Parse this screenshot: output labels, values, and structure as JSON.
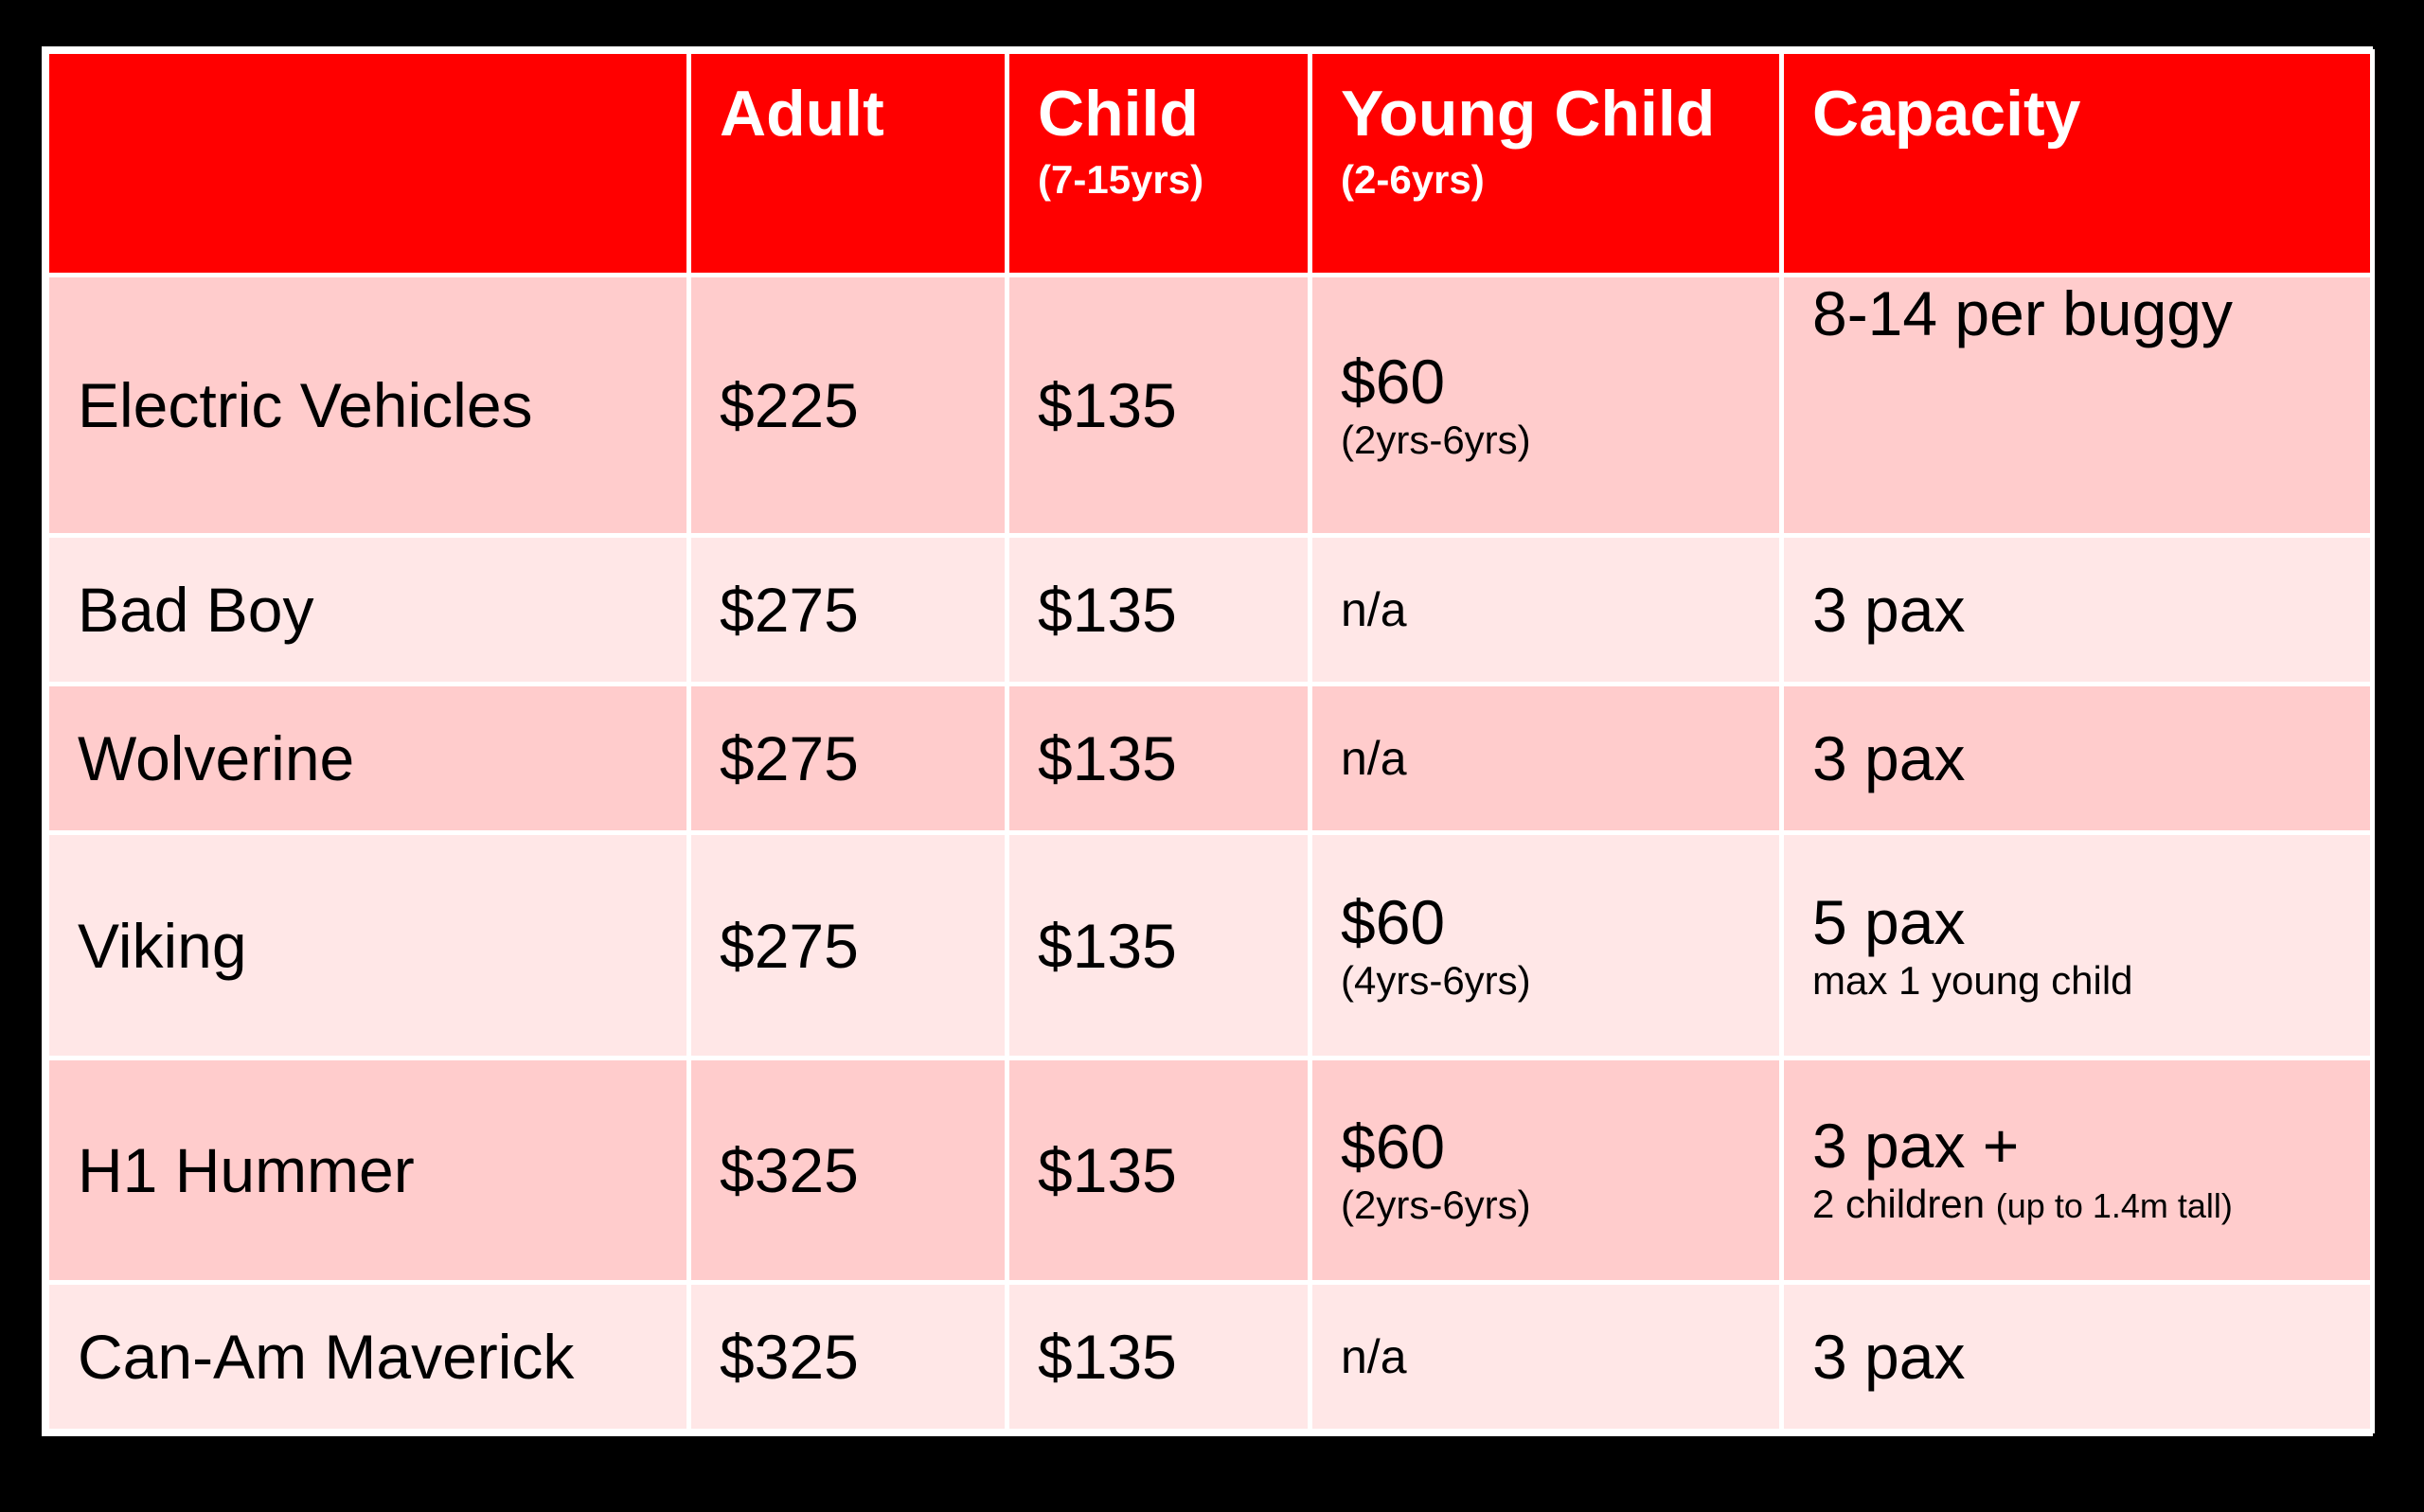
{
  "header": {
    "vehicle": "",
    "adult": "Adult",
    "child": "Child",
    "child_sub": "(7-15yrs)",
    "young_child": "Young Child",
    "young_child_sub": "(2-6yrs)",
    "capacity": "Capacity"
  },
  "rows": [
    {
      "vehicle": "Electric Vehicles",
      "adult": "$225",
      "child": "$135",
      "young_child": "$60",
      "young_child_note": "(2yrs-6yrs)",
      "capacity": "8-14 per buggy",
      "capacity_note": ""
    },
    {
      "vehicle": "Bad Boy",
      "adult": "$275",
      "child": "$135",
      "young_child": "n/a",
      "young_child_note": "",
      "capacity": "3 pax",
      "capacity_note": ""
    },
    {
      "vehicle": "Wolverine",
      "adult": "$275",
      "child": "$135",
      "young_child": "n/a",
      "young_child_note": "",
      "capacity": "3 pax",
      "capacity_note": ""
    },
    {
      "vehicle": "Viking",
      "adult": "$275",
      "child": "$135",
      "young_child": "$60",
      "young_child_note": "(4yrs-6yrs)",
      "capacity": "5 pax",
      "capacity_note": "max 1 young child"
    },
    {
      "vehicle": "H1 Hummer",
      "adult": "$325",
      "child": "$135",
      "young_child": "$60",
      "young_child_note": "(2yrs-6yrs)",
      "capacity": "3 pax +",
      "capacity_note": "2 children",
      "capacity_note_small": "(up to 1.4m tall)"
    },
    {
      "vehicle": "Can-Am Maverick",
      "adult": "$325",
      "child": "$135",
      "young_child": "n/a",
      "young_child_note": "",
      "capacity": "3 pax",
      "capacity_note": ""
    }
  ],
  "colors": {
    "background": "#000000",
    "header": "#ff0000",
    "row_dark": "#ffcccc",
    "row_light": "#ffe7e7",
    "grid": "#ffffff"
  }
}
